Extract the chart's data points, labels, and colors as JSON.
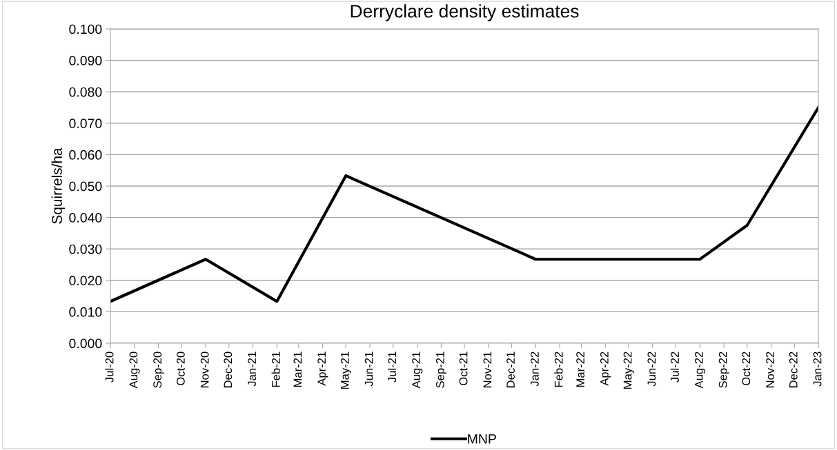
{
  "chart_data": {
    "type": "line",
    "title": "Derryclare density estimates",
    "ylabel": "Squirrels/ha",
    "x": [
      "2020-07",
      "2020-11",
      "2021-02",
      "2021-05",
      "2022-01",
      "2022-08",
      "2022-10",
      "2023-01"
    ],
    "series": [
      {
        "name": "MNP",
        "color": "#000000",
        "values": [
          0.0133,
          0.0267,
          0.0133,
          0.0533,
          0.0267,
          0.0267,
          0.0375,
          0.075
        ]
      }
    ],
    "xlim": [
      "2020-07",
      "2023-01"
    ],
    "xticks": [
      {
        "value": "2020-07",
        "label": "Jul-20"
      },
      {
        "value": "2020-08",
        "label": "Aug-20"
      },
      {
        "value": "2020-09",
        "label": "Sep-20"
      },
      {
        "value": "2020-10",
        "label": "Oct-20"
      },
      {
        "value": "2020-11",
        "label": "Nov-20"
      },
      {
        "value": "2020-12",
        "label": "Dec-20"
      },
      {
        "value": "2021-01",
        "label": "Jan-21"
      },
      {
        "value": "2021-02",
        "label": "Feb-21"
      },
      {
        "value": "2021-03",
        "label": "Mar-21"
      },
      {
        "value": "2021-04",
        "label": "Apr-21"
      },
      {
        "value": "2021-05",
        "label": "May-21"
      },
      {
        "value": "2021-06",
        "label": "Jun-21"
      },
      {
        "value": "2021-07",
        "label": "Jul-21"
      },
      {
        "value": "2021-08",
        "label": "Aug-21"
      },
      {
        "value": "2021-09",
        "label": "Sep-21"
      },
      {
        "value": "2021-10",
        "label": "Oct-21"
      },
      {
        "value": "2021-11",
        "label": "Nov-21"
      },
      {
        "value": "2021-12",
        "label": "Dec-21"
      },
      {
        "value": "2022-01",
        "label": "Jan-22"
      },
      {
        "value": "2022-02",
        "label": "Feb-22"
      },
      {
        "value": "2022-03",
        "label": "Mar-22"
      },
      {
        "value": "2022-04",
        "label": "Apr-22"
      },
      {
        "value": "2022-05",
        "label": "May-22"
      },
      {
        "value": "2022-06",
        "label": "Jun-22"
      },
      {
        "value": "2022-07",
        "label": "Jul-22"
      },
      {
        "value": "2022-08",
        "label": "Aug-22"
      },
      {
        "value": "2022-09",
        "label": "Sep-22"
      },
      {
        "value": "2022-10",
        "label": "Oct-22"
      },
      {
        "value": "2022-11",
        "label": "Nov-22"
      },
      {
        "value": "2022-12",
        "label": "Dec-22"
      },
      {
        "value": "2023-01",
        "label": "Jan-23"
      }
    ],
    "ylim": [
      0,
      0.1
    ],
    "yticks": [
      {
        "value": 0,
        "label": "0.000"
      },
      {
        "value": 0.01,
        "label": "0.010"
      },
      {
        "value": 0.02,
        "label": "0.020"
      },
      {
        "value": 0.03,
        "label": "0.030"
      },
      {
        "value": 0.04,
        "label": "0.040"
      },
      {
        "value": 0.05,
        "label": "0.050"
      },
      {
        "value": 0.06,
        "label": "0.060"
      },
      {
        "value": 0.07,
        "label": "0.070"
      },
      {
        "value": 0.08,
        "label": "0.080"
      },
      {
        "value": 0.09,
        "label": "0.090"
      },
      {
        "value": 0.1,
        "label": "0.100"
      }
    ],
    "grid": "y",
    "legend": "bottom",
    "marker": "none",
    "line_style": "solid"
  }
}
